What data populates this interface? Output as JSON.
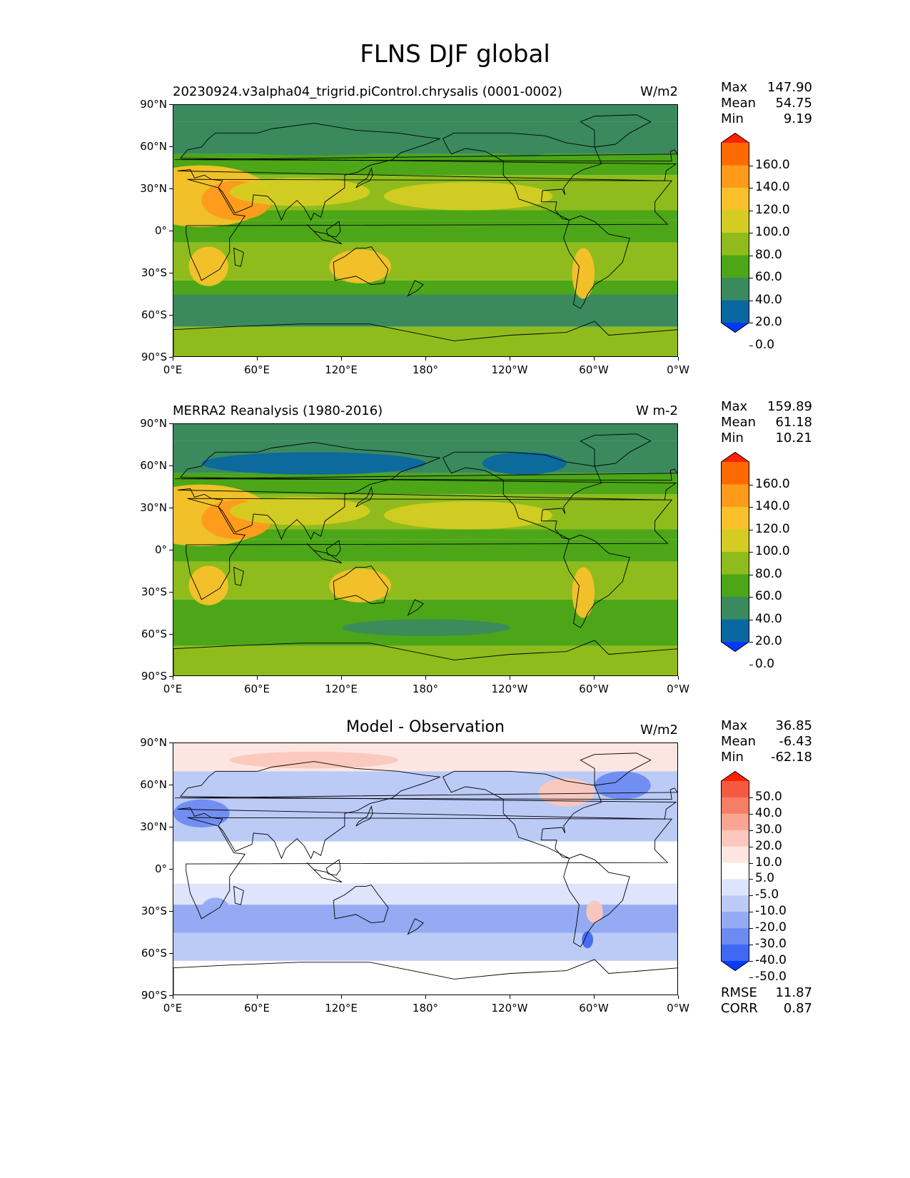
{
  "figure": {
    "title": "FLNS DJF global"
  },
  "panels": [
    {
      "id": "model",
      "title": "20230924.v3alpha04_trigrid.piControl.chrysalis (0001-0002)",
      "title_style": "left",
      "units": "W/m2",
      "stats": [
        {
          "label": "Max",
          "value": "147.90"
        },
        {
          "label": "Mean",
          "value": "54.75"
        },
        {
          "label": "Min",
          "value": "9.19"
        }
      ],
      "colorbar": {
        "labels": [
          "160.0",
          "140.0",
          "120.0",
          "100.0",
          "80.0",
          "60.0",
          "40.0",
          "20.0",
          "0.0"
        ],
        "colors": [
          "#ff2200",
          "#ff6a00",
          "#ff9a1a",
          "#f8c12a",
          "#d4cc22",
          "#8fbc1c",
          "#4ca617",
          "#3a8a5e",
          "#0a68a0",
          "#0538ff"
        ]
      }
    },
    {
      "id": "obs",
      "title": "MERRA2 Reanalysis (1980-2016)",
      "title_style": "left",
      "units": "W m-2",
      "stats": [
        {
          "label": "Max",
          "value": "159.89"
        },
        {
          "label": "Mean",
          "value": "61.18"
        },
        {
          "label": "Min",
          "value": "10.21"
        }
      ],
      "colorbar": {
        "labels": [
          "160.0",
          "140.0",
          "120.0",
          "100.0",
          "80.0",
          "60.0",
          "40.0",
          "20.0",
          "0.0"
        ],
        "colors": [
          "#ff2200",
          "#ff6a00",
          "#ff9a1a",
          "#f8c12a",
          "#d4cc22",
          "#8fbc1c",
          "#4ca617",
          "#3a8a5e",
          "#0a68a0",
          "#0538ff"
        ]
      }
    },
    {
      "id": "diff",
      "title": "Model - Observation",
      "title_style": "center",
      "units": "W/m2",
      "stats": [
        {
          "label": "Max",
          "value": "36.85"
        },
        {
          "label": "Mean",
          "value": "-6.43"
        },
        {
          "label": "Min",
          "value": "-62.18"
        }
      ],
      "extra_stats": [
        {
          "label": "RMSE",
          "value": "11.87"
        },
        {
          "label": "CORR",
          "value": "0.87"
        }
      ],
      "colorbar": {
        "labels": [
          "50.0",
          "40.0",
          "30.0",
          "20.0",
          "10.0",
          "5.0",
          "-5.0",
          "-10.0",
          "-20.0",
          "-30.0",
          "-40.0",
          "-50.0"
        ],
        "colors": [
          "#ff2200",
          "#f55a40",
          "#f77e66",
          "#f9a592",
          "#fbc7bc",
          "#fde6e1",
          "#ffffff",
          "#dde4fb",
          "#bccaf6",
          "#94aaf2",
          "#6d8af1",
          "#4068f3",
          "#0a3cff"
        ]
      }
    }
  ],
  "axes": {
    "lat_labels": [
      "90°N",
      "60°N",
      "30°N",
      "0°",
      "30°S",
      "60°S",
      "90°S"
    ],
    "lon_labels": [
      "0°E",
      "60°E",
      "120°E",
      "180°",
      "120°W",
      "60°W",
      "0°W"
    ]
  }
}
